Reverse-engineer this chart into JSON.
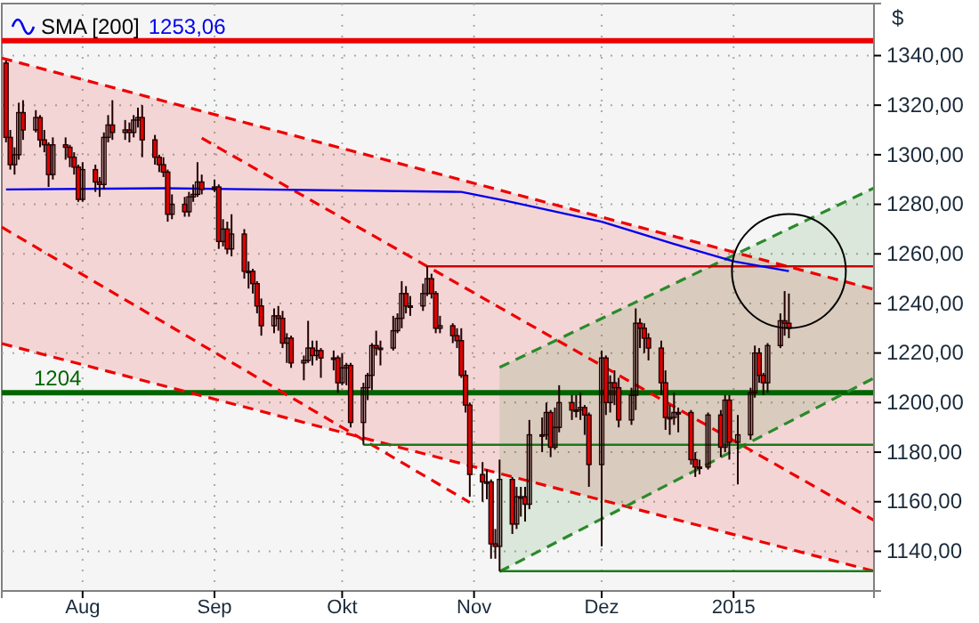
{
  "chart_data": {
    "type": "candlestick",
    "ylabel": "$",
    "colors": [
      "#e00000",
      "#e00000",
      "#200000",
      "#200000",
      "#e00000",
      "#200000",
      "#e00000",
      "#e00000",
      "#e00000",
      "#200000",
      "#e00000",
      "#e00000",
      "#e00000",
      "#e00000",
      "#200000",
      "#e00000",
      "#e00000",
      "#200000",
      "#200000",
      "#e00000",
      "#200000",
      "#e00000",
      "#200000",
      "#200000",
      "#e00000",
      "#e00000",
      "#e00000",
      "#e00000",
      "#e00000",
      "#200000",
      "#e00000",
      "#200000",
      "#200000",
      "#200000",
      "#e00000",
      "#200000",
      "#e00000",
      "#200000",
      "#e00000",
      "#200000",
      "#e00000",
      "#200000",
      "#e00000",
      "#e00000",
      "#e00000",
      "#200000",
      "#e00000",
      "#e00000",
      "#200000",
      "#e00000",
      "#200000",
      "#200000",
      "#e00000",
      "#200000",
      "#e00000",
      "#200000",
      "#e00000",
      "#200000",
      "#200000",
      "#e00000",
      "#200000",
      "#200000",
      "#200000",
      "#e00000",
      "#200000",
      "#200000",
      "#200000",
      "#200000",
      "#e00000",
      "#200000",
      "#200000",
      "#200000",
      "#e00000",
      "#e00000",
      "#200000",
      "#e00000",
      "#e00000",
      "#e00000",
      "#e00000",
      "#e00000",
      "#e00000",
      "#200000",
      "#e00000",
      "#e00000",
      "#200000",
      "#e00000",
      "#200000",
      "#200000",
      "#e00000",
      "#200000",
      "#200000",
      "#200000",
      "#e00000",
      "#200000",
      "#200000",
      "#e00000",
      "#200000",
      "#200000",
      "#e00000",
      "#e00000",
      "#200000",
      "#e00000",
      "#200000",
      "#e00000",
      "#e00000",
      "#200000",
      "#200000",
      "#e00000",
      "#e00000",
      "#e00000",
      "#e00000",
      "#e00000",
      "#200000",
      "#200000",
      "#200000",
      "#e00000",
      "#e00000",
      "#200000",
      "#200000",
      "#e00000",
      "#200000",
      "#e00000",
      "#200000",
      "#200000",
      "#200000",
      "#e00000",
      "#e00000",
      "#200000",
      "#200000",
      "#e00000",
      "#e00000"
    ],
    "x": [
      "2014-07-14",
      "2014-07-15",
      "2014-07-16",
      "2014-07-17",
      "2014-07-18",
      "2014-07-21",
      "2014-07-22",
      "2014-07-23",
      "2014-07-24",
      "2014-07-25",
      "2014-07-28",
      "2014-07-29",
      "2014-07-30",
      "2014-07-31",
      "2014-08-01",
      "2014-08-04",
      "2014-08-05",
      "2014-08-06",
      "2014-08-07",
      "2014-08-08",
      "2014-08-11",
      "2014-08-12",
      "2014-08-13",
      "2014-08-14",
      "2014-08-15",
      "2014-08-18",
      "2014-08-19",
      "2014-08-20",
      "2014-08-21",
      "2014-08-22",
      "2014-08-25",
      "2014-08-26",
      "2014-08-27",
      "2014-08-28",
      "2014-08-29",
      "2014-09-01",
      "2014-09-02",
      "2014-09-03",
      "2014-09-04",
      "2014-09-05",
      "2014-09-08",
      "2014-09-09",
      "2014-09-10",
      "2014-09-11",
      "2014-09-12",
      "2014-09-15",
      "2014-09-16",
      "2014-09-17",
      "2014-09-18",
      "2014-09-19",
      "2014-09-22",
      "2014-09-23",
      "2014-09-24",
      "2014-09-25",
      "2014-09-26",
      "2014-09-29",
      "2014-09-30",
      "2014-10-01",
      "2014-10-02",
      "2014-10-03",
      "2014-10-06",
      "2014-10-07",
      "2014-10-08",
      "2014-10-09",
      "2014-10-10",
      "2014-10-13",
      "2014-10-14",
      "2014-10-15",
      "2014-10-16",
      "2014-10-17",
      "2014-10-20",
      "2014-10-21",
      "2014-10-22",
      "2014-10-23",
      "2014-10-24",
      "2014-10-27",
      "2014-10-28",
      "2014-10-29",
      "2014-10-30",
      "2014-10-31",
      "2014-11-03",
      "2014-11-04",
      "2014-11-05",
      "2014-11-06",
      "2014-11-07",
      "2014-11-10",
      "2014-11-11",
      "2014-11-12",
      "2014-11-13",
      "2014-11-14",
      "2014-11-17",
      "2014-11-18",
      "2014-11-19",
      "2014-11-20",
      "2014-11-21",
      "2014-11-24",
      "2014-11-25",
      "2014-11-26",
      "2014-11-27",
      "2014-11-28",
      "2014-12-01",
      "2014-12-02",
      "2014-12-03",
      "2014-12-04",
      "2014-12-05",
      "2014-12-08",
      "2014-12-09",
      "2014-12-10",
      "2014-12-11",
      "2014-12-12",
      "2014-12-15",
      "2014-12-16",
      "2014-12-17",
      "2014-12-18",
      "2014-12-19",
      "2014-12-22",
      "2014-12-23",
      "2014-12-24",
      "2014-12-26",
      "2014-12-29",
      "2014-12-30",
      "2014-12-31",
      "2015-01-02",
      "2015-01-05",
      "2015-01-06",
      "2015-01-07",
      "2015-01-08",
      "2015-01-09",
      "2015-01-12",
      "2015-01-13",
      "2015-01-14"
    ],
    "ohlc": [
      [
        1337,
        1338,
        1305,
        1307
      ],
      [
        1307,
        1310,
        1294,
        1296
      ],
      [
        1296,
        1303,
        1292,
        1300
      ],
      [
        1300,
        1321,
        1298,
        1317
      ],
      [
        1317,
        1322,
        1306,
        1310
      ],
      [
        1310,
        1318,
        1309,
        1315
      ],
      [
        1315,
        1316,
        1303,
        1306
      ],
      [
        1306,
        1310,
        1301,
        1304
      ],
      [
        1304,
        1305,
        1287,
        1292
      ],
      [
        1292,
        1307,
        1290,
        1304
      ],
      [
        1304,
        1307,
        1298,
        1303
      ],
      [
        1303,
        1304,
        1295,
        1299
      ],
      [
        1299,
        1301,
        1292,
        1295
      ],
      [
        1295,
        1296,
        1281,
        1282
      ],
      [
        1282,
        1297,
        1281,
        1294
      ],
      [
        1294,
        1296,
        1285,
        1289
      ],
      [
        1289,
        1291,
        1283,
        1288
      ],
      [
        1288,
        1309,
        1286,
        1307
      ],
      [
        1307,
        1316,
        1305,
        1312
      ],
      [
        1312,
        1322,
        1306,
        1309
      ],
      [
        1309,
        1314,
        1306,
        1310
      ],
      [
        1310,
        1313,
        1305,
        1309
      ],
      [
        1309,
        1316,
        1307,
        1314
      ],
      [
        1314,
        1319,
        1311,
        1315
      ],
      [
        1315,
        1320,
        1299,
        1306
      ],
      [
        1306,
        1308,
        1296,
        1299
      ],
      [
        1299,
        1300,
        1293,
        1296
      ],
      [
        1296,
        1299,
        1291,
        1293
      ],
      [
        1293,
        1294,
        1273,
        1276
      ],
      [
        1276,
        1284,
        1274,
        1280
      ],
      [
        1280,
        1283,
        1275,
        1277
      ],
      [
        1277,
        1285,
        1275,
        1283
      ],
      [
        1283,
        1288,
        1281,
        1284
      ],
      [
        1284,
        1297,
        1283,
        1289
      ],
      [
        1289,
        1292,
        1284,
        1286
      ],
      [
        1286,
        1290,
        1285,
        1287
      ],
      [
        1287,
        1288,
        1262,
        1265
      ],
      [
        1265,
        1274,
        1263,
        1270
      ],
      [
        1270,
        1273,
        1260,
        1262
      ],
      [
        1262,
        1276,
        1259,
        1268
      ],
      [
        1268,
        1270,
        1250,
        1253
      ],
      [
        1253,
        1257,
        1246,
        1253
      ],
      [
        1253,
        1254,
        1244,
        1248
      ],
      [
        1248,
        1249,
        1236,
        1239
      ],
      [
        1239,
        1242,
        1227,
        1231
      ],
      [
        1231,
        1238,
        1228,
        1235
      ],
      [
        1235,
        1239,
        1229,
        1234
      ],
      [
        1234,
        1237,
        1222,
        1224
      ],
      [
        1224,
        1228,
        1216,
        1226
      ],
      [
        1226,
        1227,
        1214,
        1216
      ],
      [
        1216,
        1219,
        1209,
        1217
      ],
      [
        1217,
        1233,
        1216,
        1222
      ],
      [
        1222,
        1225,
        1215,
        1219
      ],
      [
        1219,
        1225,
        1217,
        1221
      ],
      [
        1221,
        1222,
        1210,
        1218
      ],
      [
        1218,
        1221,
        1213,
        1218
      ],
      [
        1218,
        1219,
        1204,
        1208
      ],
      [
        1208,
        1220,
        1207,
        1214
      ],
      [
        1214,
        1216,
        1207,
        1215
      ],
      [
        1215,
        1216,
        1190,
        1192
      ],
      [
        1192,
        1208,
        1183,
        1206
      ],
      [
        1206,
        1212,
        1201,
        1211
      ],
      [
        1211,
        1224,
        1205,
        1223
      ],
      [
        1223,
        1229,
        1219,
        1222
      ],
      [
        1222,
        1225,
        1215,
        1222
      ],
      [
        1222,
        1235,
        1221,
        1229
      ],
      [
        1229,
        1236,
        1228,
        1234
      ],
      [
        1234,
        1249,
        1230,
        1244
      ],
      [
        1244,
        1247,
        1236,
        1239
      ],
      [
        1239,
        1243,
        1235,
        1239
      ],
      [
        1239,
        1248,
        1237,
        1244
      ],
      [
        1244,
        1255,
        1243,
        1250
      ],
      [
        1250,
        1252,
        1242,
        1244
      ],
      [
        1244,
        1245,
        1228,
        1230
      ],
      [
        1230,
        1235,
        1228,
        1231
      ],
      [
        1231,
        1232,
        1224,
        1227
      ],
      [
        1227,
        1230,
        1222,
        1225
      ],
      [
        1225,
        1230,
        1210,
        1211
      ],
      [
        1211,
        1213,
        1196,
        1199
      ],
      [
        1199,
        1200,
        1162,
        1171
      ],
      [
        1171,
        1176,
        1160,
        1168
      ],
      [
        1168,
        1173,
        1161,
        1168
      ],
      [
        1168,
        1169,
        1137,
        1143
      ],
      [
        1143,
        1149,
        1137,
        1142
      ],
      [
        1142,
        1177,
        1132,
        1169
      ],
      [
        1169,
        1170,
        1147,
        1151
      ],
      [
        1151,
        1166,
        1149,
        1162
      ],
      [
        1162,
        1166,
        1154,
        1162
      ],
      [
        1162,
        1166,
        1152,
        1159
      ],
      [
        1159,
        1193,
        1157,
        1187
      ],
      [
        1187,
        1194,
        1180,
        1187
      ],
      [
        1187,
        1200,
        1185,
        1196
      ],
      [
        1196,
        1197,
        1178,
        1182
      ],
      [
        1182,
        1198,
        1181,
        1190
      ],
      [
        1190,
        1207,
        1188,
        1200
      ],
      [
        1200,
        1203,
        1193,
        1197
      ],
      [
        1197,
        1203,
        1194,
        1197
      ],
      [
        1197,
        1204,
        1193,
        1198
      ],
      [
        1198,
        1199,
        1187,
        1195
      ],
      [
        1195,
        1196,
        1166,
        1175
      ],
      [
        1175,
        1221,
        1142,
        1218
      ],
      [
        1218,
        1219,
        1195,
        1200
      ],
      [
        1200,
        1211,
        1196,
        1208
      ],
      [
        1208,
        1213,
        1199,
        1206
      ],
      [
        1206,
        1210,
        1190,
        1193
      ],
      [
        1193,
        1206,
        1191,
        1203
      ],
      [
        1203,
        1238,
        1197,
        1232
      ],
      [
        1232,
        1234,
        1222,
        1230
      ],
      [
        1230,
        1232,
        1220,
        1226
      ],
      [
        1226,
        1228,
        1217,
        1222
      ],
      [
        1222,
        1225,
        1203,
        1208
      ],
      [
        1208,
        1213,
        1189,
        1194
      ],
      [
        1194,
        1199,
        1187,
        1194
      ],
      [
        1194,
        1204,
        1191,
        1196
      ],
      [
        1196,
        1198,
        1188,
        1196
      ],
      [
        1196,
        1197,
        1175,
        1177
      ],
      [
        1177,
        1180,
        1170,
        1174
      ],
      [
        1174,
        1177,
        1171,
        1174
      ],
      [
        1174,
        1196,
        1173,
        1195
      ],
      [
        1195,
        1197,
        1178,
        1182
      ],
      [
        1182,
        1203,
        1180,
        1201
      ],
      [
        1201,
        1203,
        1177,
        1184
      ],
      [
        1184,
        1195,
        1167,
        1187
      ],
      [
        1187,
        1206,
        1185,
        1204
      ],
      [
        1204,
        1223,
        1202,
        1220
      ],
      [
        1220,
        1222,
        1208,
        1211
      ],
      [
        1211,
        1212,
        1203,
        1208
      ],
      [
        1208,
        1224,
        1204,
        1223
      ],
      [
        1223,
        1236,
        1222,
        1233
      ],
      [
        1233,
        1245,
        1227,
        1232
      ],
      [
        1232,
        1244,
        1226,
        1230
      ]
    ],
    "series": [
      {
        "type": "line",
        "line_style": "dashed",
        "color": "#ee0000",
        "x": [
          "2014-07-13",
          "2015-02-03"
        ],
        "values": [
          1339,
          1245.7
        ],
        "lower": [
          1223.8,
          1132
        ],
        "upper": [
          1339,
          1245.7
        ]
      },
      {
        "type": "line",
        "line_style": "dashed",
        "color": "#ee0000",
        "x": [
          "2014-07-13",
          "2015-02-03"
        ],
        "values": [
          1223.8,
          1132
        ]
      },
      {
        "type": "line",
        "line_style": "dashed",
        "color": "#ee0000",
        "x": [
          "2014-08-29",
          "2015-02-03"
        ],
        "values": [
          1306.7,
          1152.5
        ]
      },
      {
        "type": "line",
        "line_style": "dashed",
        "color": "#ee0000",
        "x": [
          "2014-07-13",
          "2014-10-31"
        ],
        "values": [
          1270.8,
          1159.7
        ]
      },
      {
        "type": "line",
        "line_style": "dashed",
        "color": "#2a8a2a",
        "x": [
          "2014-11-07",
          "2015-02-03"
        ],
        "values": [
          1214.2,
          1286.6
        ],
        "lower": [
          1131.8,
          1209.9
        ],
        "upper": [
          1214.2,
          1286.6
        ]
      },
      {
        "type": "line",
        "line_style": "dashed",
        "color": "#2a8a2a",
        "x": [
          "2014-11-07",
          "2015-02-03"
        ],
        "values": [
          1131.8,
          1209.9
        ]
      },
      {
        "type": "line",
        "line_style": "solid",
        "color": "#cc0000",
        "x": [
          "2014-10-21",
          "2015-02-03"
        ],
        "values": [
          1255,
          1255
        ]
      },
      {
        "type": "line",
        "line_style": "solid",
        "color": "#1a7a1a",
        "x": [
          "2014-10-06",
          "2015-02-03"
        ],
        "values": [
          1183,
          1183
        ]
      },
      {
        "type": "line",
        "line_style": "solid",
        "color": "#1a7a1a",
        "x": [
          "2014-11-07",
          "2015-02-03"
        ],
        "values": [
          1132,
          1132
        ]
      },
      {
        "type": "line",
        "line_style": "solid",
        "name": "SMA [200]",
        "color": "#0000ee",
        "x": [
          "2014-07-14",
          "2014-08-20",
          "2014-10-29",
          "2014-11-08",
          "2014-12-01",
          "2014-12-18",
          "2015-01-01",
          "2015-01-14"
        ],
        "values": [
          1286,
          1286.5,
          1285,
          1281.6,
          1273,
          1264,
          1257,
          1253.06
        ]
      }
    ],
    "annotations": [
      "1253,06"
    ],
    "ref_lines": [
      {
        "axis": "y",
        "value": 1346,
        "label": null,
        "color": "#ee0000"
      },
      {
        "axis": "y",
        "value": 1204,
        "label": "1204",
        "color": "#006400"
      }
    ],
    "xlim": [
      "2014-07-13",
      "2015-02-03"
    ],
    "xticks": [
      {
        "value": "2014-08-01",
        "label": "Aug"
      },
      {
        "value": "2014-09-01",
        "label": "Sep"
      },
      {
        "value": "2014-10-01",
        "label": "Okt"
      },
      {
        "value": "2014-11-01",
        "label": "Nov"
      },
      {
        "value": "2014-12-01",
        "label": "Dez"
      },
      {
        "value": "2015-01-01",
        "label": "2015"
      }
    ],
    "ylim": [
      1124,
      1361
    ],
    "yticks": [
      {
        "value": 1140,
        "label": "1140,00"
      },
      {
        "value": 1160,
        "label": "1160,00"
      },
      {
        "value": 1180,
        "label": "1180,00"
      },
      {
        "value": 1200,
        "label": "1200,00"
      },
      {
        "value": 1220,
        "label": "1220,00"
      },
      {
        "value": 1240,
        "label": "1240,00"
      },
      {
        "value": 1260,
        "label": "1260,00"
      },
      {
        "value": 1280,
        "label": "1280,00"
      },
      {
        "value": 1300,
        "label": "1300,00"
      },
      {
        "value": 1320,
        "label": "1320,00"
      },
      {
        "value": 1340,
        "label": "1340,00"
      }
    ],
    "grid": true,
    "legend": "top left"
  }
}
